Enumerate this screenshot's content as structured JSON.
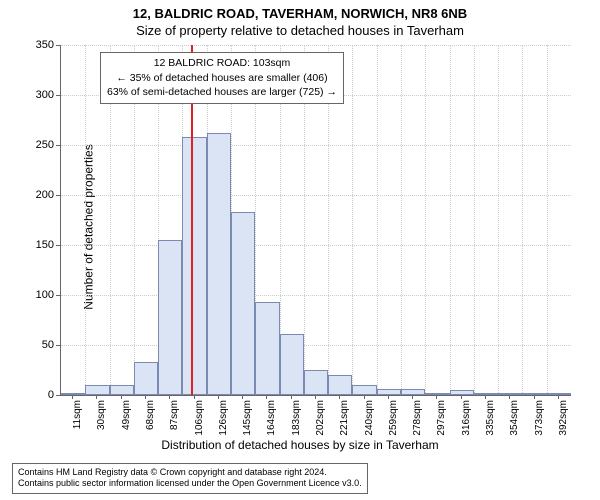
{
  "title_main": "12, BALDRIC ROAD, TAVERHAM, NORWICH, NR8 6NB",
  "title_sub": "Size of property relative to detached houses in Taverham",
  "y_label": "Number of detached properties",
  "x_label": "Distribution of detached houses by size in Taverham",
  "info_line1": "12 BALDRIC ROAD: 103sqm",
  "info_line2": "← 35% of detached houses are smaller (406)",
  "info_line3": "63% of semi-detached houses are larger (725) →",
  "footer_line1": "Contains HM Land Registry data © Crown copyright and database right 2024.",
  "footer_line2": "Contains public sector information licensed under the Open Government Licence v3.0.",
  "chart": {
    "type": "histogram",
    "background_color": "#ffffff",
    "grid_color": "#cccccc",
    "bar_fill": "#dbe4f5",
    "bar_border": "#7a8ab0",
    "ref_line_color": "#e02020",
    "ref_line_x": 103,
    "ylim": [
      0,
      350
    ],
    "ytick_step": 50,
    "x_categories": [
      "11sqm",
      "30sqm",
      "49sqm",
      "68sqm",
      "87sqm",
      "106sqm",
      "126sqm",
      "145sqm",
      "164sqm",
      "183sqm",
      "202sqm",
      "221sqm",
      "240sqm",
      "259sqm",
      "278sqm",
      "297sqm",
      "316sqm",
      "335sqm",
      "354sqm",
      "373sqm",
      "392sqm"
    ],
    "bar_values": [
      2,
      10,
      10,
      33,
      155,
      258,
      262,
      183,
      93,
      61,
      25,
      20,
      10,
      6,
      6,
      2,
      5,
      2,
      2,
      2,
      2
    ],
    "y_ticks": [
      0,
      50,
      100,
      150,
      200,
      250,
      300,
      350
    ]
  }
}
